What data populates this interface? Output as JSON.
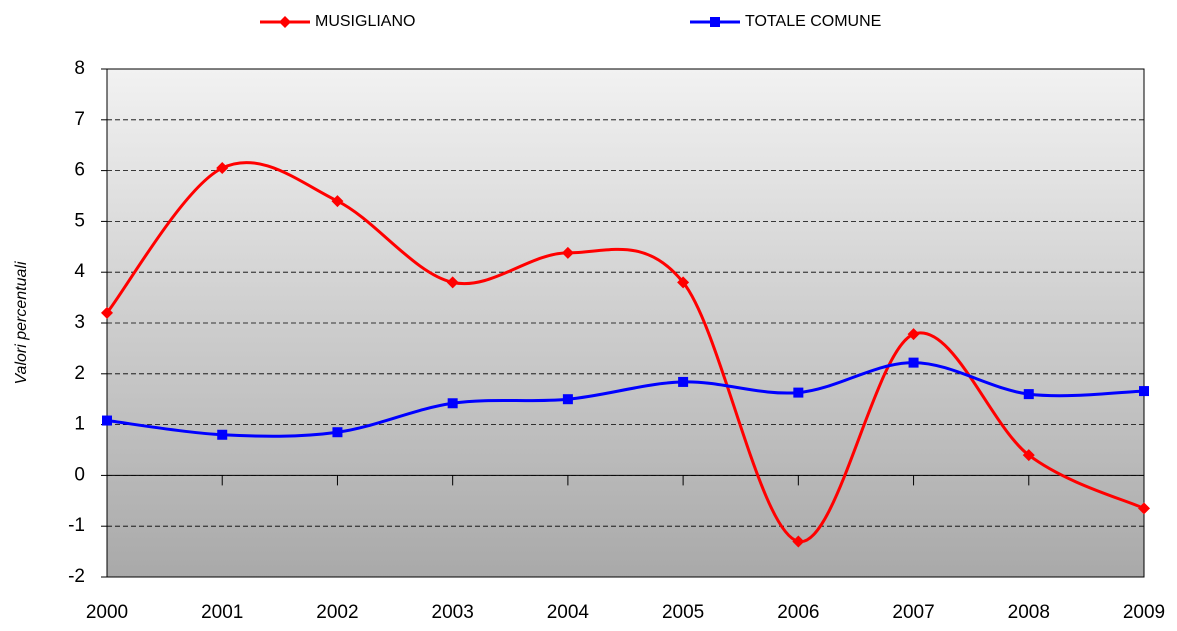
{
  "chart_data": {
    "type": "line",
    "y_label": "Valori percentuali",
    "x": [
      2000,
      2001,
      2002,
      2003,
      2004,
      2005,
      2006,
      2007,
      2008,
      2009
    ],
    "xlim": [
      2000,
      2009
    ],
    "xticks": [
      2000,
      2001,
      2002,
      2003,
      2004,
      2005,
      2006,
      2007,
      2008,
      2009
    ],
    "ylim": [
      -2,
      8
    ],
    "yticks": [
      -2,
      -1,
      0,
      1,
      2,
      3,
      4,
      5,
      6,
      7,
      8
    ],
    "grid": true,
    "legend": "top",
    "series": [
      {
        "name": "MUSIGLIANO",
        "color": "#ff0000",
        "marker": "diamond",
        "values": [
          3.2,
          6.05,
          5.4,
          3.8,
          4.38,
          3.8,
          -1.3,
          2.78,
          0.4,
          -0.65
        ]
      },
      {
        "name": "TOTALE COMUNE",
        "color": "#0000ff",
        "marker": "square",
        "values": [
          1.08,
          0.8,
          0.85,
          1.42,
          1.5,
          1.84,
          1.63,
          2.22,
          1.6,
          1.66
        ]
      }
    ]
  }
}
